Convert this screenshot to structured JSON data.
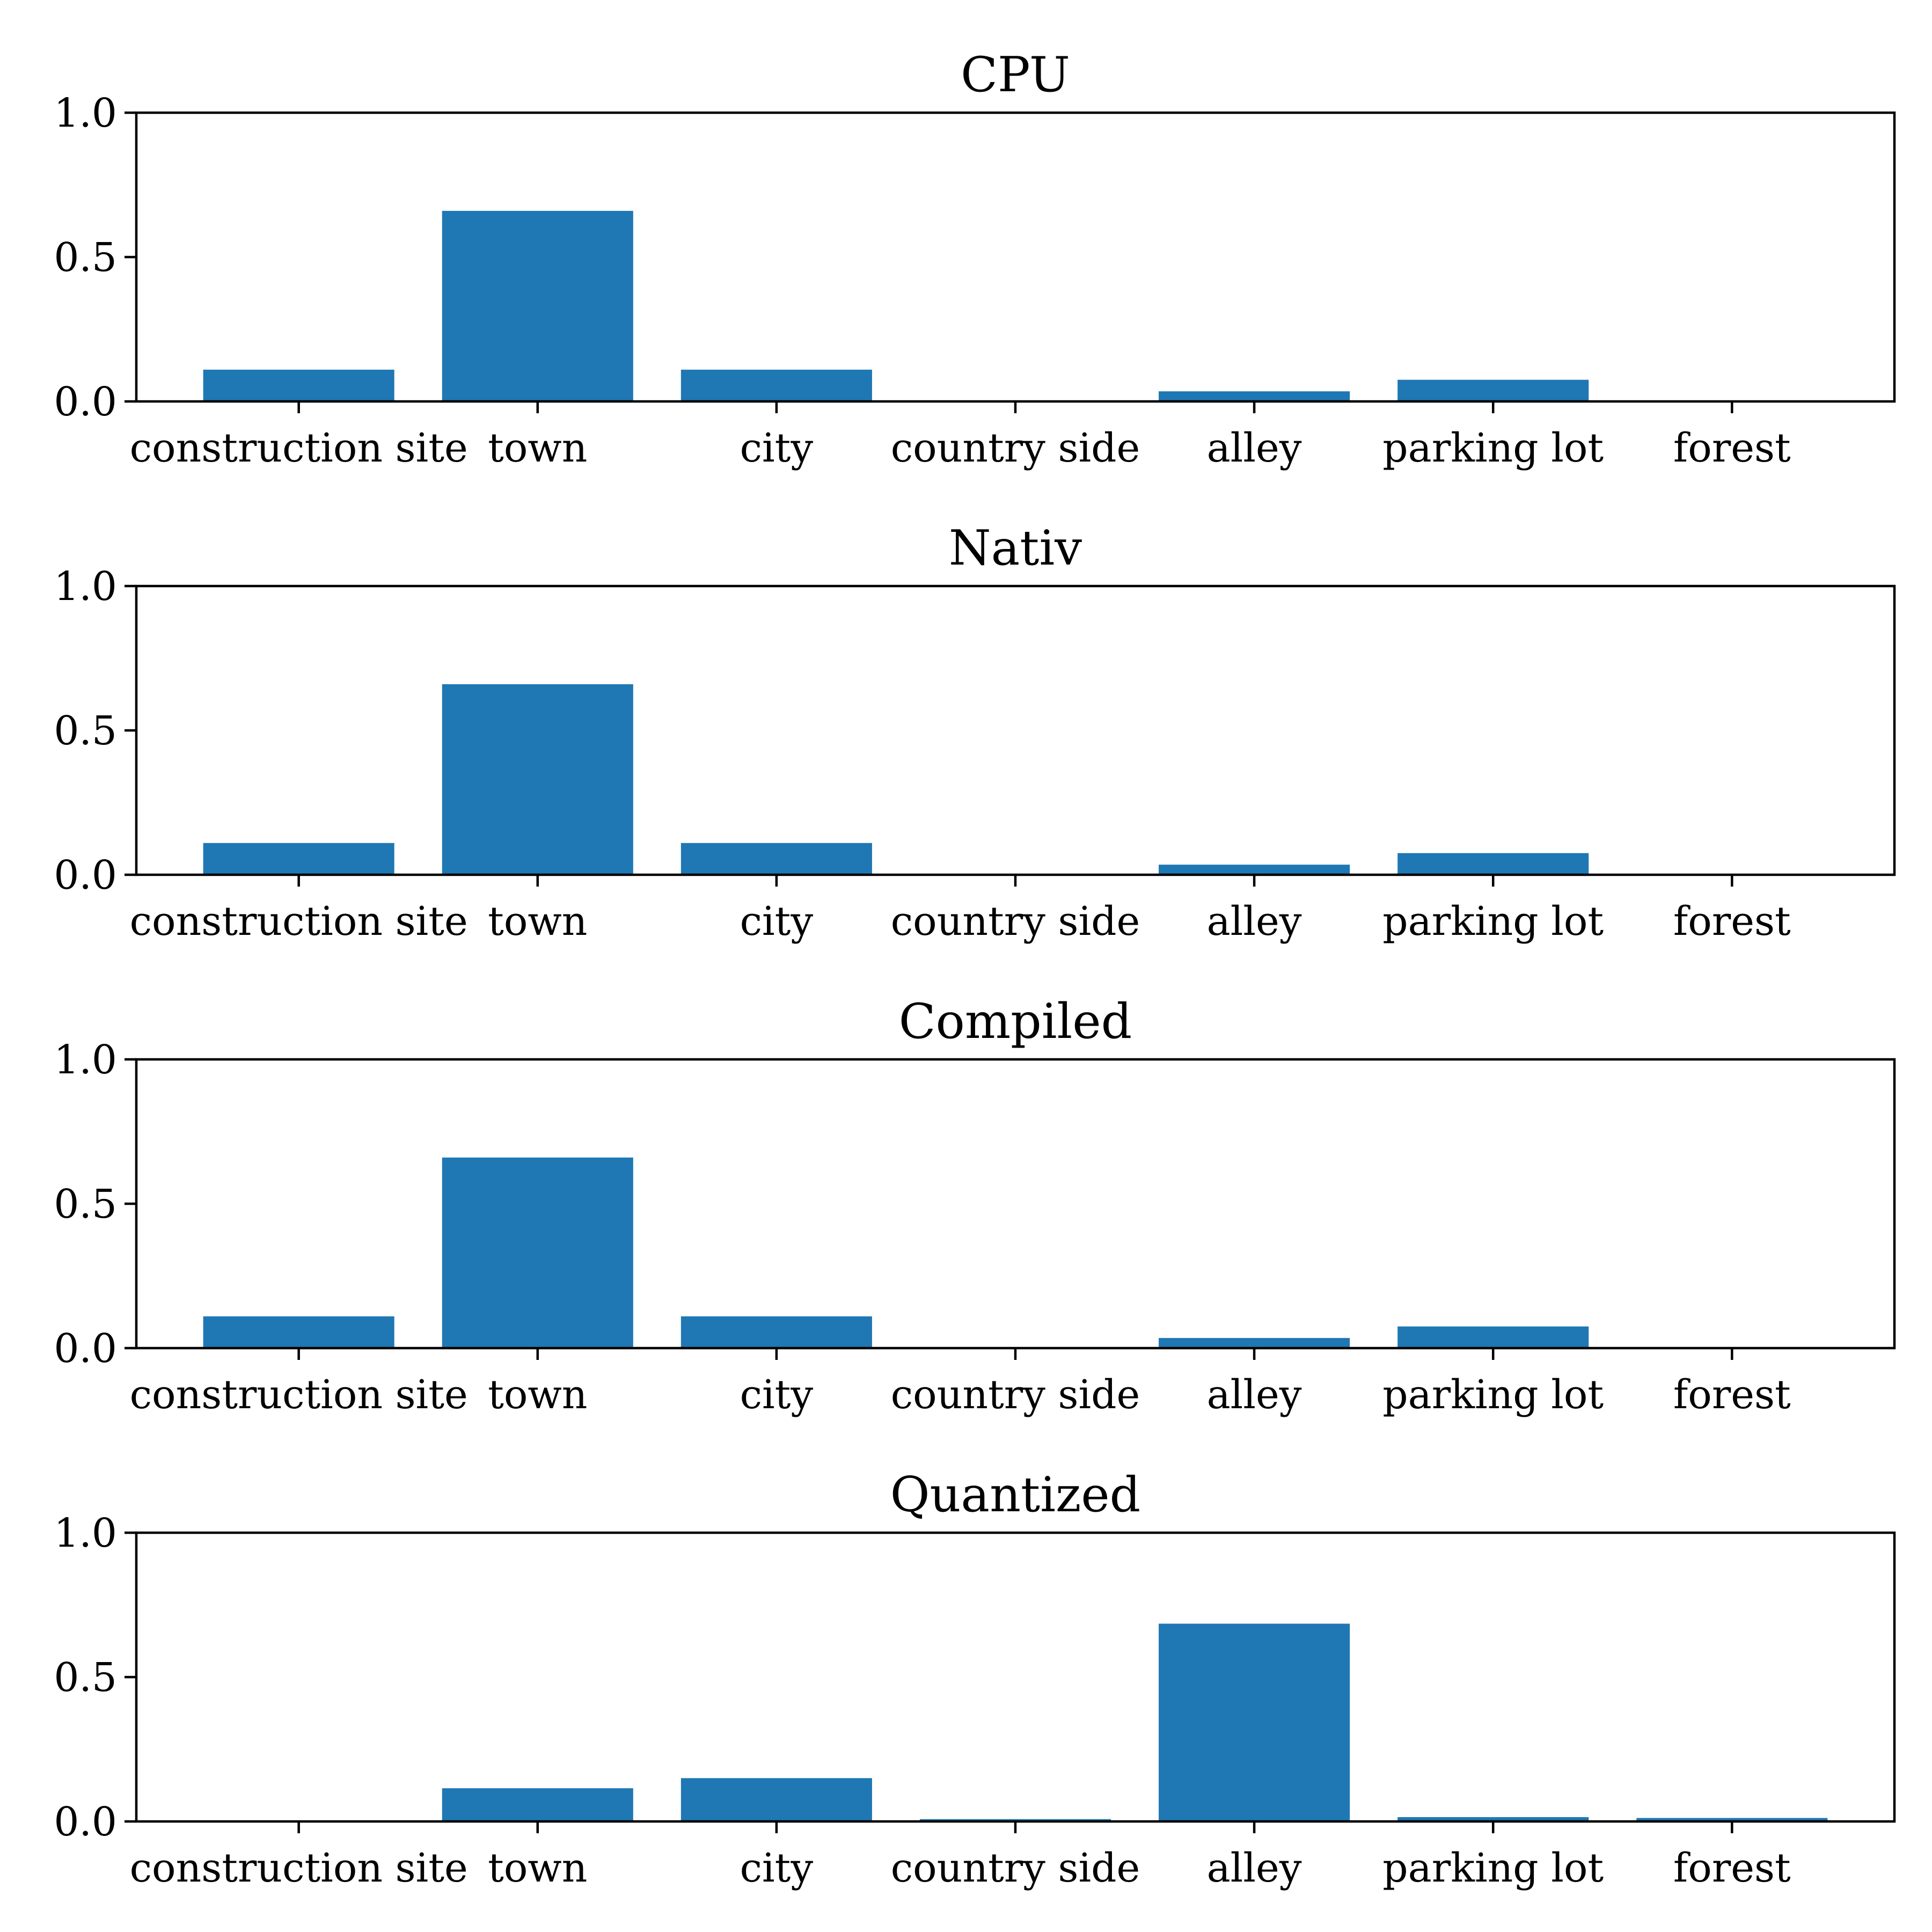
{
  "chart_data": [
    {
      "type": "bar",
      "title": "CPU",
      "categories": [
        "construction site",
        "town",
        "city",
        "country side",
        "alley",
        "parking lot",
        "forest"
      ],
      "values": [
        0.11,
        0.66,
        0.11,
        0.0,
        0.035,
        0.075,
        0.0
      ],
      "ylim": [
        0,
        1.0
      ],
      "yticks": [
        "0.0",
        "0.5",
        "1.0"
      ],
      "color": "#1f77b4",
      "grid": false
    },
    {
      "type": "bar",
      "title": "Nativ",
      "categories": [
        "construction site",
        "town",
        "city",
        "country side",
        "alley",
        "parking lot",
        "forest"
      ],
      "values": [
        0.11,
        0.66,
        0.11,
        0.0,
        0.035,
        0.075,
        0.0
      ],
      "ylim": [
        0,
        1.0
      ],
      "yticks": [
        "0.0",
        "0.5",
        "1.0"
      ],
      "color": "#1f77b4",
      "grid": false
    },
    {
      "type": "bar",
      "title": "Compiled",
      "categories": [
        "construction site",
        "town",
        "city",
        "country side",
        "alley",
        "parking lot",
        "forest"
      ],
      "values": [
        0.11,
        0.66,
        0.11,
        0.0,
        0.035,
        0.075,
        0.0
      ],
      "ylim": [
        0,
        1.0
      ],
      "yticks": [
        "0.0",
        "0.5",
        "1.0"
      ],
      "color": "#1f77b4",
      "grid": false
    },
    {
      "type": "bar",
      "title": "Quantized",
      "categories": [
        "construction site",
        "town",
        "city",
        "country side",
        "alley",
        "parking lot",
        "forest"
      ],
      "values": [
        0.0,
        0.115,
        0.15,
        0.008,
        0.685,
        0.015,
        0.012
      ],
      "ylim": [
        0,
        1.0
      ],
      "yticks": [
        "0.0",
        "0.5",
        "1.0"
      ],
      "color": "#1f77b4",
      "grid": false
    }
  ]
}
